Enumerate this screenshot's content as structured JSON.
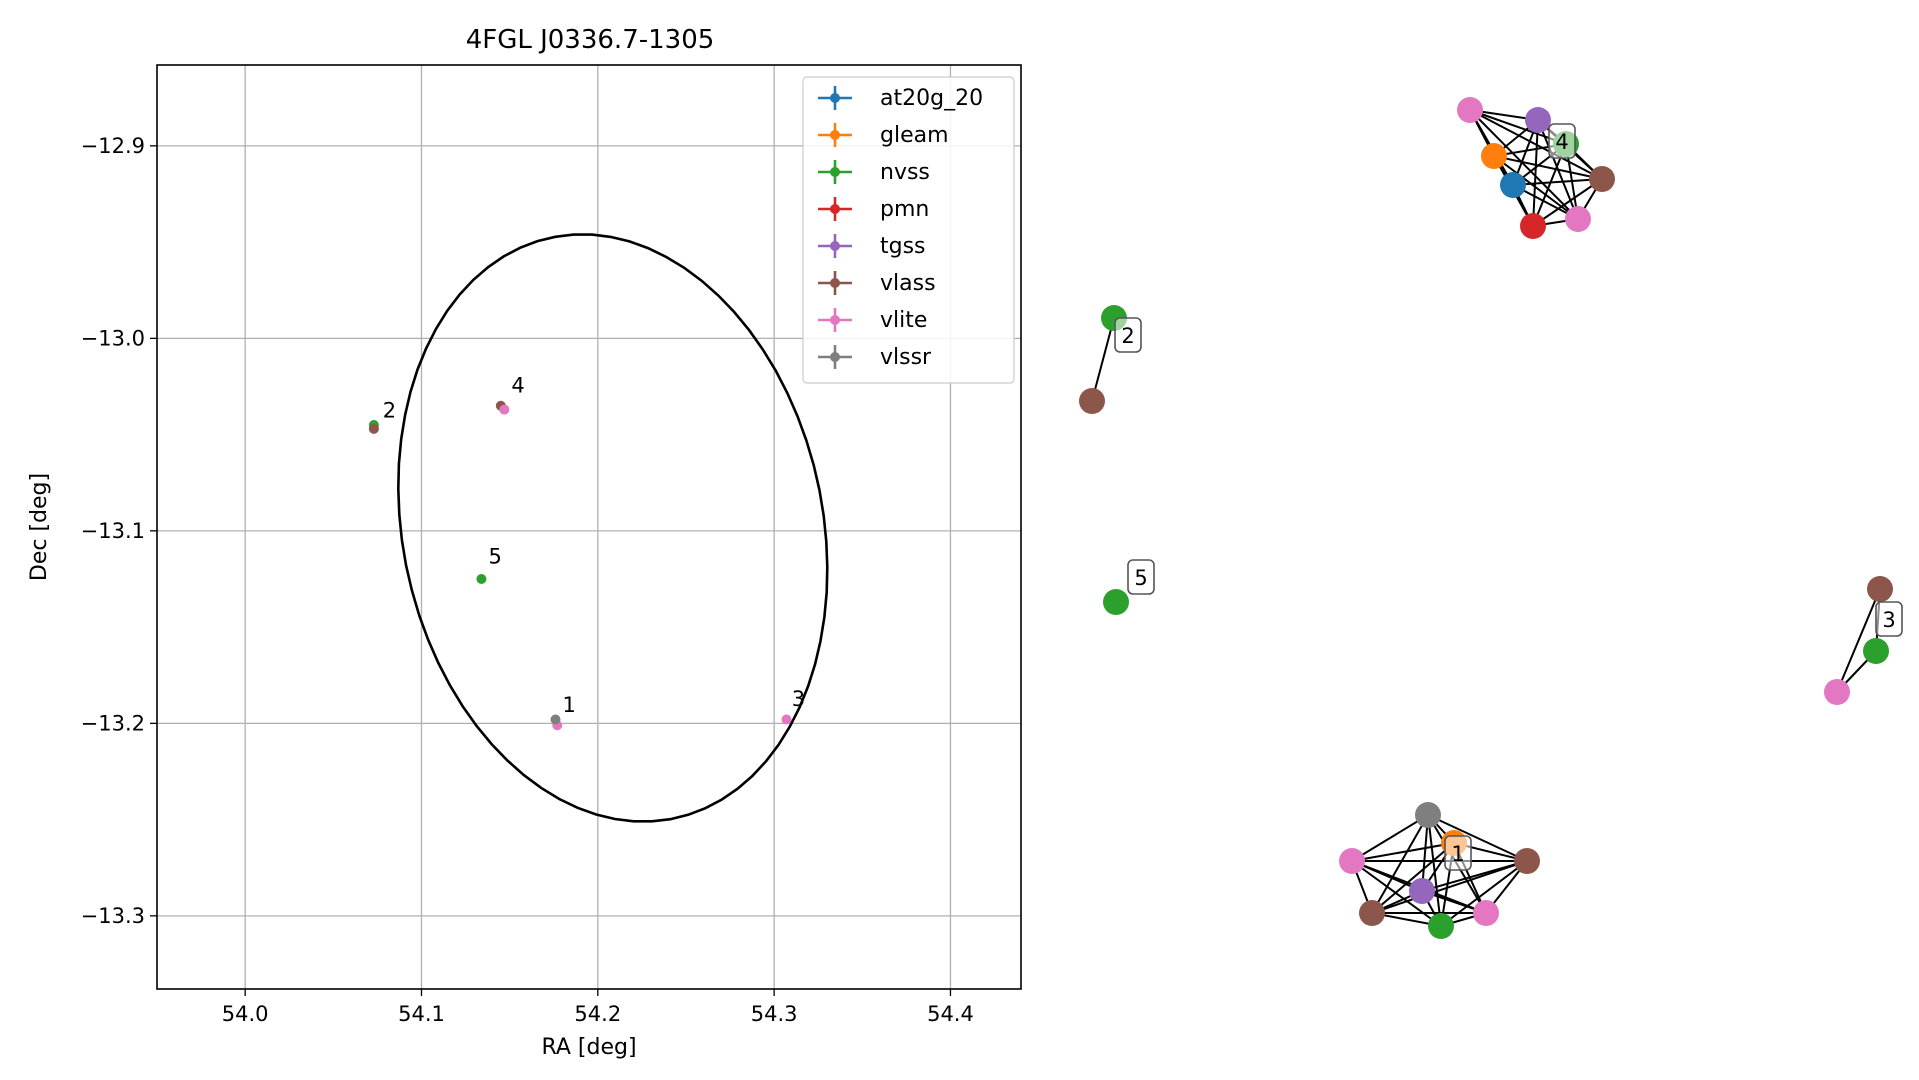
{
  "chart_data": [
    {
      "type": "scatter",
      "title": "4FGL J0336.7-1305",
      "xlabel": "RA [deg]",
      "ylabel": "Dec [deg]",
      "xlim": [
        53.95,
        54.44
      ],
      "ylim": [
        -13.338,
        -12.858
      ],
      "xticks": [
        54.0,
        54.1,
        54.2,
        54.3,
        54.4
      ],
      "xtick_labels": [
        "54.0",
        "54.1",
        "54.2",
        "54.3",
        "54.4"
      ],
      "yticks": [
        -12.9,
        -13.0,
        -13.1,
        -13.2,
        -13.3
      ],
      "ytick_labels": [
        "−12.9",
        "−13.0",
        "−13.1",
        "−13.2",
        "−13.3"
      ],
      "grid": true,
      "legend_position": "top-right",
      "series": [
        {
          "name": "at20g_20",
          "color": "#1f77b4",
          "points": []
        },
        {
          "name": "gleam",
          "color": "#ff7f0e",
          "points": []
        },
        {
          "name": "nvss",
          "color": "#2ca02c",
          "points": [
            {
              "x": 54.073,
              "y": -13.045
            },
            {
              "x": 54.134,
              "y": -13.125
            }
          ]
        },
        {
          "name": "pmn",
          "color": "#d62728",
          "points": []
        },
        {
          "name": "tgss",
          "color": "#9467bd",
          "points": []
        },
        {
          "name": "vlass",
          "color": "#8c564b",
          "points": [
            {
              "x": 54.073,
              "y": -13.047
            },
            {
              "x": 54.145,
              "y": -13.035
            }
          ]
        },
        {
          "name": "vlite",
          "color": "#e377c2",
          "points": [
            {
              "x": 54.147,
              "y": -13.037
            },
            {
              "x": 54.177,
              "y": -13.201
            },
            {
              "x": 54.307,
              "y": -13.198
            }
          ]
        },
        {
          "name": "vlssr",
          "color": "#7f7f7f",
          "points": [
            {
              "x": 54.176,
              "y": -13.198
            }
          ]
        }
      ],
      "annotations": [
        {
          "text": "1",
          "x": 54.18,
          "y": -13.194
        },
        {
          "text": "2",
          "x": 54.078,
          "y": -13.041
        },
        {
          "text": "3",
          "x": 54.31,
          "y": -13.191
        },
        {
          "text": "4",
          "x": 54.151,
          "y": -13.028
        },
        {
          "text": "5",
          "x": 54.138,
          "y": -13.117
        }
      ],
      "ellipse": {
        "center": [
          54.2085,
          -13.0985
        ],
        "semi_axes": [
          0.1185,
          0.155
        ],
        "rotation_deg": 16
      }
    },
    {
      "type": "network",
      "clusters": [
        {
          "label": "1",
          "nodes": [
            "vlssr",
            "gleam",
            "vlite",
            "vlass",
            "tgss",
            "vlass",
            "nvss",
            "vlite"
          ]
        },
        {
          "label": "2",
          "nodes": [
            "nvss",
            "vlass"
          ]
        },
        {
          "label": "3",
          "nodes": [
            "vlass",
            "nvss",
            "vlite"
          ]
        },
        {
          "label": "4",
          "nodes": [
            "vlite",
            "tgss",
            "nvss",
            "gleam",
            "at20g_20",
            "vlass",
            "pmn",
            "vlite"
          ]
        },
        {
          "label": "5",
          "nodes": [
            "nvss"
          ]
        }
      ]
    }
  ]
}
